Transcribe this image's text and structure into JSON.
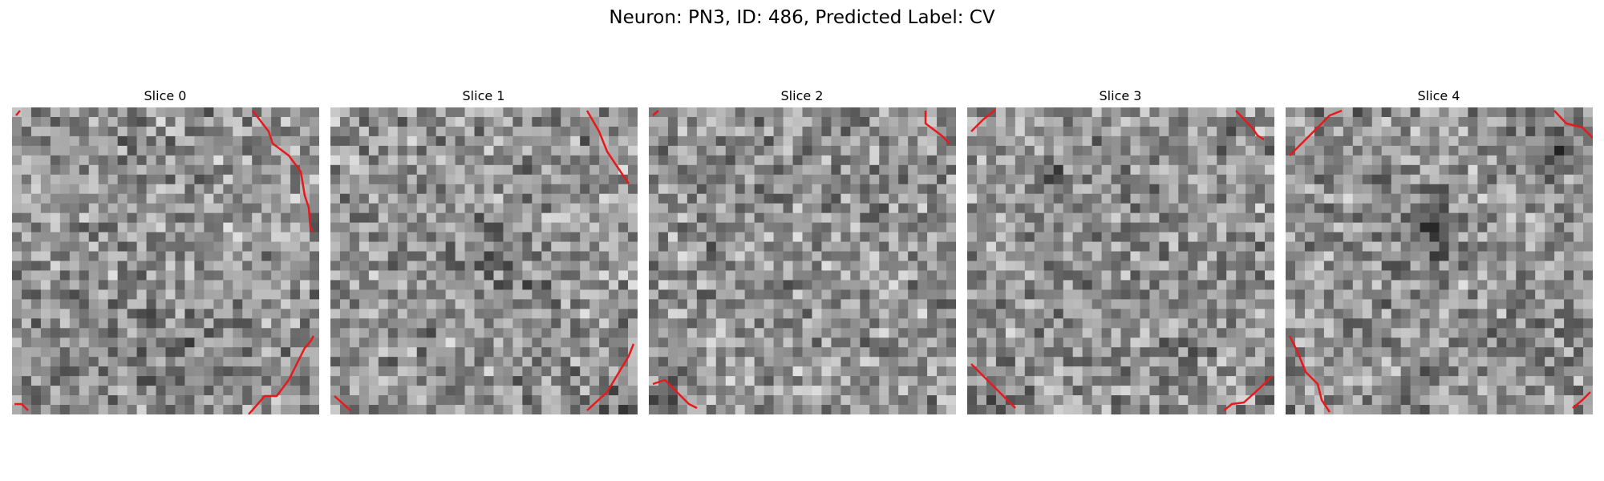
{
  "figure": {
    "title": "Neuron: PN3, ID: 486, Predicted Label: CV"
  },
  "panels": [
    {
      "title": "Slice 0"
    },
    {
      "title": "Slice 1"
    },
    {
      "title": "Slice 2"
    },
    {
      "title": "Slice 3"
    },
    {
      "title": "Slice 4"
    }
  ],
  "contour_color": "#e8191c",
  "colormap": "gray"
}
